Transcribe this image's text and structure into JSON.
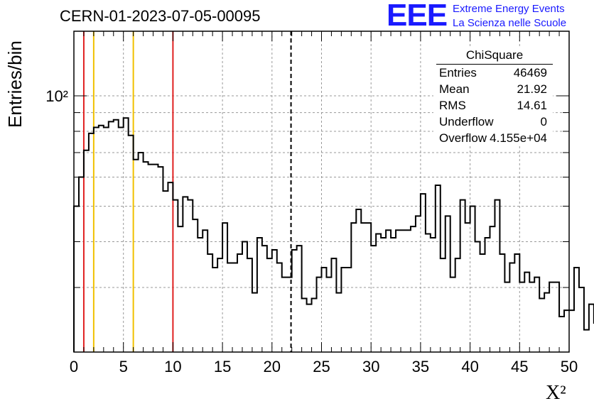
{
  "title": "CERN-01-2023-07-05-00095",
  "brand": {
    "logo": "EEE",
    "line1": "Extreme Energy Events",
    "line2": "La Scienza nelle Scuole",
    "color": "#1a1aff"
  },
  "stats": {
    "title": "ChiSquare",
    "rows": [
      {
        "label": "Entries",
        "value": "46469"
      },
      {
        "label": "Mean",
        "value": "21.92"
      },
      {
        "label": "RMS",
        "value": "14.61"
      },
      {
        "label": "Underflow",
        "value": "0"
      },
      {
        "label": "Overflow",
        "value": "4.155e+04"
      }
    ]
  },
  "chart_data": {
    "type": "histogram",
    "xlabel": "X²",
    "ylabel": "Entries/bin",
    "xlim": [
      0,
      50
    ],
    "ylim": [
      20,
      150
    ],
    "yscale": "log",
    "grid": true,
    "xticks": [
      0,
      5,
      10,
      15,
      20,
      25,
      30,
      35,
      40,
      45,
      50
    ],
    "ytick_labels": [
      {
        "value": 100,
        "label": "10²"
      }
    ],
    "bin_width": 0.5,
    "bin_edges_start": 0,
    "values": [
      50,
      60,
      71,
      79,
      82,
      83,
      82,
      85,
      86,
      82,
      87,
      78,
      67,
      70,
      66,
      65,
      65,
      64,
      55,
      58,
      52,
      44,
      53,
      52,
      46,
      41,
      43,
      37,
      34,
      36,
      45,
      35,
      35,
      37,
      40,
      36,
      29,
      41,
      39,
      36,
      38,
      35,
      32,
      32,
      38,
      39,
      28,
      27,
      28,
      32,
      34,
      32,
      36,
      29,
      34,
      34,
      45,
      49,
      45,
      45,
      39,
      42,
      41,
      43,
      41,
      43,
      43,
      43,
      44,
      47,
      54,
      42,
      41,
      57,
      36,
      47,
      32,
      36,
      52,
      45,
      50,
      40,
      37,
      41,
      44,
      52,
      37,
      31,
      35,
      37,
      31,
      33,
      31,
      32,
      28,
      29,
      31,
      31,
      25,
      26,
      26,
      34,
      30,
      23,
      27,
      24
    ],
    "vlines": [
      {
        "x": 1,
        "color": "#e02020",
        "style": "solid"
      },
      {
        "x": 2,
        "color": "#f0c000",
        "style": "solid"
      },
      {
        "x": 6,
        "color": "#f0c000",
        "style": "solid"
      },
      {
        "x": 10,
        "color": "#e02020",
        "style": "solid"
      },
      {
        "x": 21.92,
        "color": "#000000",
        "style": "dashed"
      }
    ],
    "line_color": "#000000"
  }
}
